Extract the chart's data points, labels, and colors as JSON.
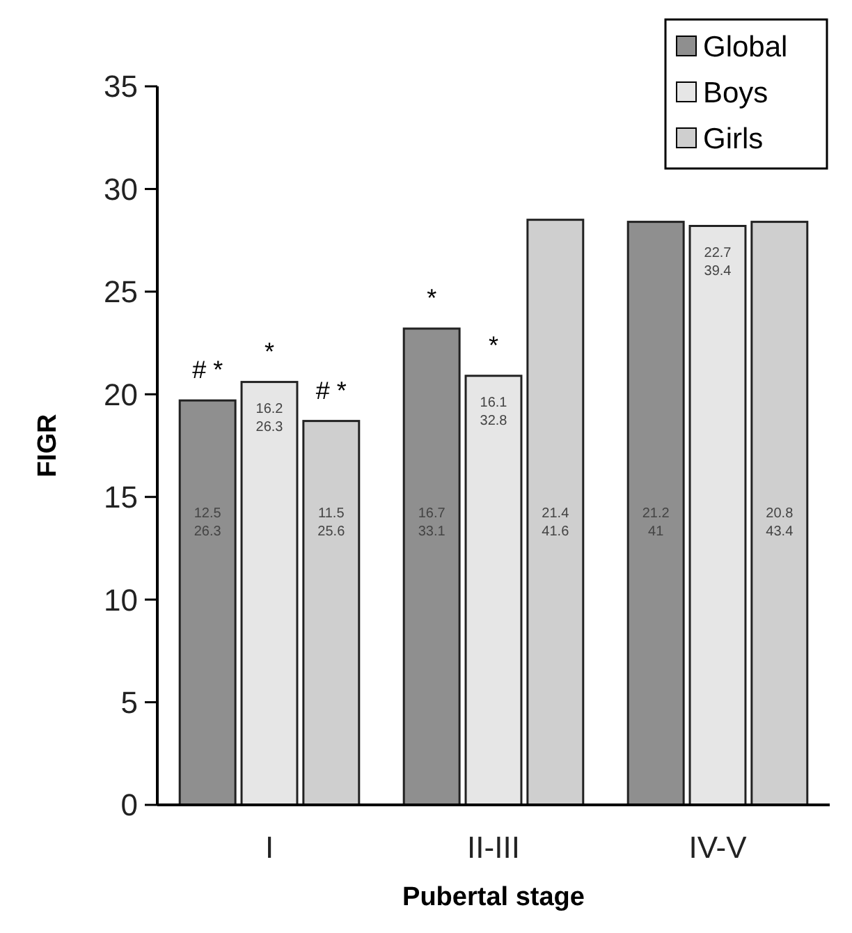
{
  "chart_data": {
    "type": "bar",
    "xlabel": "Pubertal stage",
    "ylabel": "FIGR",
    "categories": [
      "I",
      "II-III",
      "IV-V"
    ],
    "series": [
      {
        "name": "Global",
        "color": "#8f8f8f",
        "values": [
          19.7,
          23.2,
          28.4
        ]
      },
      {
        "name": "Boys",
        "color": "#e6e6e6",
        "values": [
          20.6,
          20.9,
          28.2
        ]
      },
      {
        "name": "Girls",
        "color": "#cfcfcf",
        "values": [
          18.7,
          28.5,
          28.4
        ]
      }
    ],
    "annotations": [
      "12.5\n26.3",
      "16.2\n26.3",
      "11.5\n25.6",
      "16.7\n33.1",
      "16.1\n32.8",
      "21.4\n41.6",
      "21.2\n41",
      "22.7\n39.4",
      "20.8\n43.4",
      "# *",
      "*",
      "# *",
      "*",
      "*"
    ],
    "ylim": [
      0,
      35
    ],
    "yticks": [
      0,
      5,
      10,
      15,
      20,
      25,
      30,
      35
    ],
    "grid": false,
    "legend": "top right"
  }
}
